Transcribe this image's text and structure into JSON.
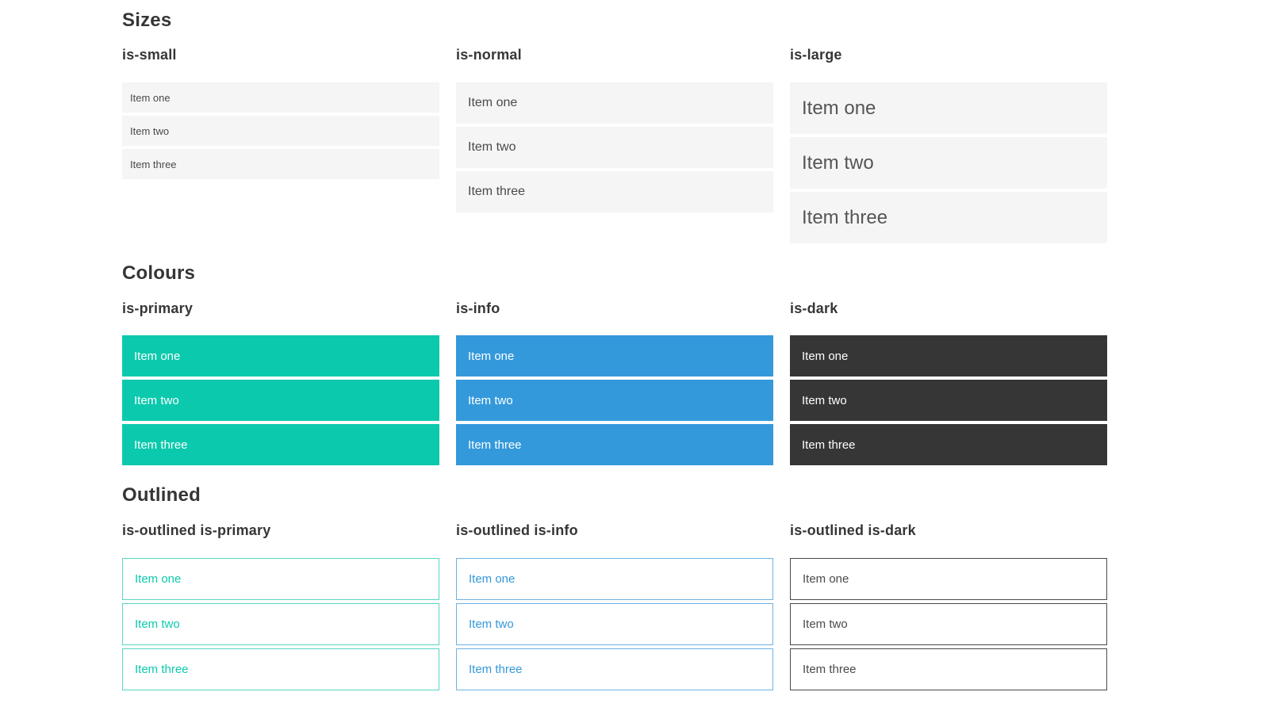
{
  "colors": {
    "heading": "#363636",
    "text": "#4a4a4a",
    "light-bg": "#f5f5f5",
    "primary": "#0bc9ad",
    "primary-border": "#56d6c2",
    "info": "#3499db",
    "info-border": "#6cb2e4",
    "dark": "#363636",
    "dark-border": "#4a4a4a"
  },
  "sections": [
    {
      "id": "sizes",
      "title": "Sizes",
      "groups": [
        {
          "label": "is-small",
          "variant": "size-small",
          "items": [
            "Item one",
            "Item two",
            "Item three"
          ]
        },
        {
          "label": "is-normal",
          "variant": "size-normal",
          "items": [
            "Item one",
            "Item two",
            "Item three"
          ]
        },
        {
          "label": "is-large",
          "variant": "size-large",
          "items": [
            "Item one",
            "Item two",
            "Item three"
          ]
        }
      ]
    },
    {
      "id": "colours",
      "title": "Colours",
      "groups": [
        {
          "label": "is-primary",
          "variant": "color-primary",
          "items": [
            "Item one",
            "Item two",
            "Item three"
          ]
        },
        {
          "label": "is-info",
          "variant": "color-info",
          "items": [
            "Item one",
            "Item two",
            "Item three"
          ]
        },
        {
          "label": "is-dark",
          "variant": "color-dark",
          "items": [
            "Item one",
            "Item two",
            "Item three"
          ]
        }
      ]
    },
    {
      "id": "outlined",
      "title": "Outlined",
      "groups": [
        {
          "label": "is-outlined is-primary",
          "variant": "outlined-primary",
          "items": [
            "Item one",
            "Item two",
            "Item three"
          ]
        },
        {
          "label": "is-outlined is-info",
          "variant": "outlined-info",
          "items": [
            "Item one",
            "Item two",
            "Item three"
          ]
        },
        {
          "label": "is-outlined is-dark",
          "variant": "outlined-dark",
          "items": [
            "Item one",
            "Item two",
            "Item three"
          ]
        }
      ]
    }
  ]
}
